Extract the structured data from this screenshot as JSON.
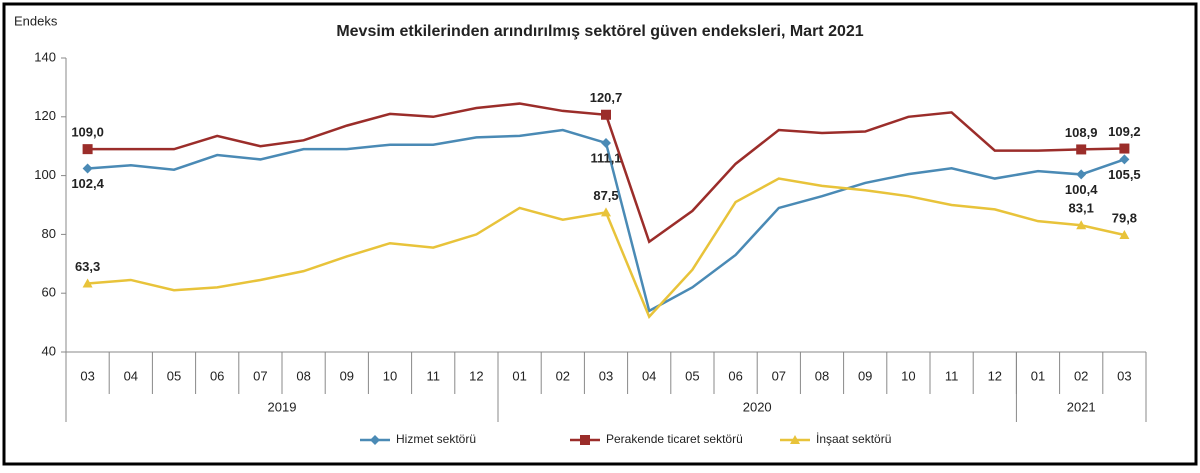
{
  "chart_data": {
    "type": "line",
    "title": "Mevsim etkilerinden arındırılmış sektörel güven endeksleri, Mart 2021",
    "y_label": "Endeks",
    "categories": [
      "03",
      "04",
      "05",
      "06",
      "07",
      "08",
      "09",
      "10",
      "11",
      "12",
      "01",
      "02",
      "03",
      "04",
      "05",
      "06",
      "07",
      "08",
      "09",
      "10",
      "11",
      "12",
      "01",
      "02",
      "03"
    ],
    "year_groups": [
      {
        "label": "2019",
        "count": 10
      },
      {
        "label": "2020",
        "count": 12
      },
      {
        "label": "2021",
        "count": 3
      }
    ],
    "series": [
      {
        "name": "Hizmet sektörü",
        "color": "#4a8ab5",
        "marker": "diamond",
        "values": [
          102.4,
          103.5,
          102,
          107,
          105.5,
          109,
          109,
          110.5,
          110.5,
          113,
          113.5,
          115.5,
          111.1,
          54,
          62,
          73,
          89,
          93,
          97.5,
          100.5,
          102.5,
          99,
          101.5,
          100.4,
          105.5
        ],
        "value_labels": [
          "102,4",
          null,
          null,
          null,
          null,
          null,
          null,
          null,
          null,
          null,
          null,
          null,
          "111,1",
          null,
          null,
          null,
          null,
          null,
          null,
          null,
          null,
          null,
          null,
          "100,4",
          "105,5"
        ]
      },
      {
        "name": "Perakende ticaret sektörü",
        "color": "#9b2d2a",
        "marker": "square",
        "values": [
          109.0,
          109,
          109,
          113.5,
          110,
          112,
          117,
          121,
          120,
          123,
          124.5,
          122,
          120.7,
          77.5,
          88,
          104,
          115.5,
          114.5,
          115,
          120,
          121.5,
          108.5,
          108.5,
          108.9,
          109.2
        ],
        "value_labels": [
          "109,0",
          null,
          null,
          null,
          null,
          null,
          null,
          null,
          null,
          null,
          null,
          null,
          "120,7",
          null,
          null,
          null,
          null,
          null,
          null,
          null,
          null,
          null,
          null,
          "108,9",
          "109,2"
        ]
      },
      {
        "name": "İnşaat sektörü",
        "color": "#e8c33a",
        "marker": "triangle",
        "values": [
          63.3,
          64.5,
          61,
          62,
          64.5,
          67.5,
          72.5,
          77,
          75.5,
          80,
          89,
          85,
          87.5,
          52,
          68,
          91,
          99,
          96.5,
          95,
          93,
          90,
          88.5,
          84.5,
          83.1,
          79.8
        ],
        "value_labels": [
          "63,3",
          null,
          null,
          null,
          null,
          null,
          null,
          null,
          null,
          null,
          null,
          null,
          "87,5",
          null,
          null,
          null,
          null,
          null,
          null,
          null,
          null,
          null,
          null,
          "83,1",
          "79,8"
        ]
      }
    ],
    "ylim": [
      40,
      140
    ],
    "yticks": [
      40,
      60,
      80,
      100,
      120,
      140
    ],
    "grid": false,
    "legend": "bottom"
  }
}
